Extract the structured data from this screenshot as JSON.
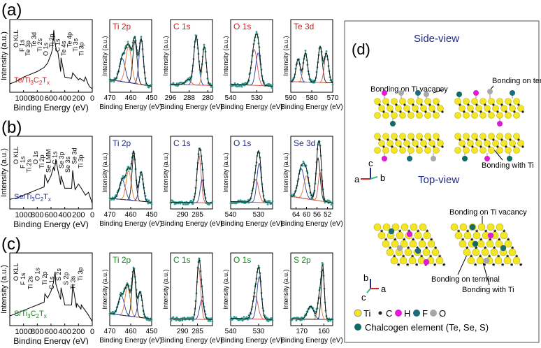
{
  "chart_data": {
    "type": "line",
    "colors": {
      "data": "#2a9d8f",
      "fit": "#111111",
      "bg_line": "#d9534f",
      "alt1": "#2b3a9e",
      "alt2": "#e07b39",
      "te_label": "#d42020",
      "se_label": "#1f2a8a",
      "s_label": "#138a1c",
      "ti": "#f3e626",
      "c": "#222222",
      "h": "#e11ad5",
      "f": "#1b6b7a",
      "o": "#a8a8a8",
      "chalc": "#0f6b63"
    },
    "common": {
      "ylabel": "Intensity (a.u.)",
      "xlabel": "Binding Energy (eV)"
    },
    "rows": [
      {
        "panel": "(a)",
        "survey": {
          "label_main": "Te/Ti",
          "label_sub1": "3",
          "label_mid": "C",
          "label_sub2": "2",
          "label_end": "T",
          "label_sub3": "x",
          "xlim": [
            1200,
            0
          ],
          "ticks": [
            1000,
            800,
            600,
            400,
            200,
            0
          ],
          "x": [
            1200,
            1100,
            1000,
            900,
            800,
            700,
            650,
            600,
            580,
            560,
            540,
            520,
            500,
            460,
            455,
            400,
            300,
            285,
            200,
            180,
            120,
            100,
            60,
            40,
            0
          ],
          "y": [
            0.12,
            0.16,
            0.22,
            0.26,
            0.3,
            0.36,
            0.42,
            0.55,
            0.62,
            0.9,
            0.7,
            0.6,
            0.58,
            0.3,
            0.5,
            0.22,
            0.2,
            0.28,
            0.18,
            0.2,
            0.16,
            0.22,
            0.12,
            0.08,
            0.05
          ],
          "peaks": [
            "O KLL",
            "F 1s",
            "Te 3p",
            "Te 3d",
            "Ti 2s",
            "O 1s",
            "Ti 2p",
            "C 1s",
            "Te 4s",
            "Te 4p",
            "Ti 3s",
            "Ti 3p"
          ]
        },
        "hr": [
          {
            "title": "Ti 2p",
            "xlim": [
              470,
              450
            ],
            "ticks": [
              470,
              460,
              450
            ],
            "peaks": [
              {
                "c": 464,
                "h": 0.35,
                "w": 1.4,
                "k": "alt1"
              },
              {
                "c": 461,
                "h": 0.55,
                "w": 1.4,
                "k": "alt2"
              },
              {
                "c": 458,
                "h": 0.65,
                "w": 1.0,
                "k": "fit"
              },
              {
                "c": 455,
                "h": 0.7,
                "w": 1.0,
                "k": "alt1"
              }
            ],
            "bg": [
              0.15,
              0.05
            ]
          },
          {
            "title": "C 1s",
            "xlim": [
              296,
              278
            ],
            "ticks": [
              296,
              288,
              280
            ],
            "peaks": [
              {
                "c": 285,
                "h": 0.75,
                "w": 1.0,
                "k": "alt1"
              },
              {
                "c": 281.5,
                "h": 0.6,
                "w": 0.8,
                "k": "alt2"
              },
              {
                "c": 288.5,
                "h": 0.08,
                "w": 1.2,
                "k": "bg_line"
              }
            ],
            "bg": [
              0.08,
              0.06
            ]
          },
          {
            "title": "O 1s",
            "xlim": [
              540,
              524
            ],
            "ticks": [
              540,
              530
            ],
            "peaks": [
              {
                "c": 531,
                "h": 0.55,
                "w": 1.1,
                "k": "bg_line"
              },
              {
                "c": 529.5,
                "h": 0.5,
                "w": 0.9,
                "k": "alt1"
              }
            ],
            "bg": [
              0.08,
              0.05
            ]
          },
          {
            "title": "Te 3d",
            "xlim": [
              590,
              570
            ],
            "ticks": [
              590,
              580,
              570
            ],
            "peaks": [
              {
                "c": 586.5,
                "h": 0.35,
                "w": 1.0,
                "k": "alt1"
              },
              {
                "c": 583,
                "h": 0.45,
                "w": 1.0,
                "k": "alt2"
              },
              {
                "c": 576,
                "h": 0.55,
                "w": 1.0,
                "k": "fit"
              },
              {
                "c": 573,
                "h": 0.45,
                "w": 1.0,
                "k": "bg_line"
              }
            ],
            "bg": [
              0.12,
              0.1
            ]
          }
        ]
      },
      {
        "panel": "(b)",
        "survey": {
          "label_main": "Se/Ti",
          "label_sub1": "3",
          "label_mid": "C",
          "label_sub2": "2",
          "label_end": "T",
          "label_sub3": "x",
          "xlim": [
            1200,
            0
          ],
          "ticks": [
            1000,
            800,
            600,
            400,
            200,
            0
          ],
          "x": [
            1200,
            1100,
            1000,
            900,
            800,
            700,
            690,
            650,
            600,
            565,
            550,
            530,
            460,
            455,
            400,
            300,
            285,
            250,
            200,
            160,
            100,
            55,
            0
          ],
          "y": [
            0.14,
            0.16,
            0.2,
            0.24,
            0.28,
            0.32,
            0.5,
            0.38,
            0.48,
            0.6,
            0.55,
            0.72,
            0.35,
            0.48,
            0.3,
            0.3,
            0.56,
            0.28,
            0.36,
            0.3,
            0.2,
            0.24,
            0.08
          ],
          "peaks": [
            "O KLL",
            "F 1s",
            "Ti 2s",
            "O 1s",
            "Ti 2p",
            "Se LMM",
            "C 1s",
            "Se 3p",
            "Se 3s",
            "Se 3d",
            "Ti 3p"
          ]
        },
        "hr": [
          {
            "title": "Ti 2p",
            "xlim": [
              470,
              450
            ],
            "ticks": [
              470,
              460,
              450
            ],
            "peaks": [
              {
                "c": 464,
                "h": 0.3,
                "w": 1.4,
                "k": "alt1"
              },
              {
                "c": 461,
                "h": 0.45,
                "w": 1.2,
                "k": "alt2"
              },
              {
                "c": 458.5,
                "h": 0.7,
                "w": 0.9,
                "k": "fit"
              },
              {
                "c": 455,
                "h": 0.45,
                "w": 1.0,
                "k": "alt1"
              }
            ],
            "bg": [
              0.12,
              0.06
            ]
          },
          {
            "title": "C 1s",
            "xlim": [
              294,
              280
            ],
            "ticks": [
              290,
              285
            ],
            "peaks": [
              {
                "c": 284.5,
                "h": 0.72,
                "w": 0.7,
                "k": "bg_line"
              },
              {
                "c": 283.5,
                "h": 0.35,
                "w": 0.6,
                "k": "alt1"
              }
            ],
            "bg": [
              0.06,
              0.05
            ]
          },
          {
            "title": "O 1s",
            "xlim": [
              540,
              525
            ],
            "ticks": [
              540,
              530
            ],
            "peaks": [
              {
                "c": 531,
                "h": 0.35,
                "w": 1.0,
                "k": "bg_line"
              },
              {
                "c": 529.8,
                "h": 0.6,
                "w": 0.8,
                "k": "alt1"
              }
            ],
            "bg": [
              0.07,
              0.05
            ]
          },
          {
            "title": "Se 3d",
            "xlim": [
              66,
              50
            ],
            "ticks": [
              64,
              60,
              56,
              52
            ],
            "peaks": [
              {
                "c": 62,
                "h": 0.45,
                "w": 1.2,
                "k": "alt1"
              },
              {
                "c": 60,
                "h": 0.35,
                "w": 1.0,
                "k": "alt2"
              },
              {
                "c": 55.6,
                "h": 0.65,
                "w": 0.8,
                "k": "fit"
              },
              {
                "c": 54.8,
                "h": 0.45,
                "w": 0.7,
                "k": "bg_line"
              }
            ],
            "bg": [
              0.15,
              0.05
            ]
          }
        ]
      },
      {
        "panel": "(c)",
        "survey": {
          "label_main": "S/Ti",
          "label_sub1": "3",
          "label_mid": "C",
          "label_sub2": "2",
          "label_end": "T",
          "label_sub3": "x",
          "xlim": [
            1200,
            0
          ],
          "ticks": [
            1000,
            800,
            600,
            400,
            200,
            0
          ],
          "x": [
            1200,
            1100,
            1000,
            900,
            800,
            700,
            690,
            650,
            600,
            565,
            540,
            530,
            460,
            455,
            400,
            300,
            285,
            230,
            225,
            165,
            160,
            60,
            0
          ],
          "y": [
            0.14,
            0.18,
            0.22,
            0.26,
            0.3,
            0.34,
            0.46,
            0.4,
            0.5,
            0.62,
            0.78,
            0.6,
            0.38,
            0.55,
            0.3,
            0.3,
            0.6,
            0.26,
            0.32,
            0.24,
            0.3,
            0.16,
            0.06
          ],
          "peaks": [
            "O KLL",
            "F 1s",
            "Ti 2s",
            "O 1s",
            "Ti 2p",
            "C 1s",
            "S 2s",
            "S 2p",
            "Ti 3s",
            "Ti 3p"
          ]
        },
        "hr": [
          {
            "title": "Ti 2p",
            "xlim": [
              470,
              450
            ],
            "ticks": [
              470,
              460,
              450
            ],
            "peaks": [
              {
                "c": 464.5,
                "h": 0.3,
                "w": 1.4,
                "k": "alt1"
              },
              {
                "c": 461.5,
                "h": 0.45,
                "w": 1.2,
                "k": "alt2"
              },
              {
                "c": 458.5,
                "h": 0.72,
                "w": 0.9,
                "k": "fit"
              },
              {
                "c": 455.5,
                "h": 0.4,
                "w": 1.0,
                "k": "alt1"
              }
            ],
            "bg": [
              0.14,
              0.06
            ]
          },
          {
            "title": "C 1s",
            "xlim": [
              294,
              280
            ],
            "ticks": [
              290,
              285
            ],
            "peaks": [
              {
                "c": 284.6,
                "h": 0.8,
                "w": 0.65,
                "k": "bg_line"
              },
              {
                "c": 283.6,
                "h": 0.3,
                "w": 0.7,
                "k": "alt1"
              }
            ],
            "bg": [
              0.06,
              0.05
            ]
          },
          {
            "title": "O 1s",
            "xlim": [
              540,
              525
            ],
            "ticks": [
              540,
              530
            ],
            "peaks": [
              {
                "c": 531.2,
                "h": 0.35,
                "w": 1.0,
                "k": "bg_line"
              },
              {
                "c": 529.8,
                "h": 0.65,
                "w": 0.8,
                "k": "alt1"
              }
            ],
            "bg": [
              0.07,
              0.05
            ]
          },
          {
            "title": "S 2p",
            "xlim": [
              175,
              156
            ],
            "ticks": [
              170,
              160
            ],
            "peaks": [
              {
                "c": 166,
                "h": 0.2,
                "w": 1.4,
                "k": "alt1"
              },
              {
                "c": 162,
                "h": 0.35,
                "w": 0.8,
                "k": "alt2"
              },
              {
                "c": 160.5,
                "h": 0.78,
                "w": 0.7,
                "k": "fit"
              }
            ],
            "bg": [
              0.06,
              0.05
            ]
          }
        ]
      }
    ],
    "panel_d": {
      "label": "(d)",
      "side_view": "Side-view",
      "top_view": "Top-view",
      "ann_vacancy": "Bonding on Ti vacancy",
      "ann_terminal": "Bonding on terminal",
      "ann_withti": "Bonding with Ti",
      "axis_a": "a",
      "axis_b": "b",
      "axis_c": "c",
      "legend": [
        {
          "key": "ti",
          "label": "Ti"
        },
        {
          "key": "c",
          "label": "C"
        },
        {
          "key": "h",
          "label": "H"
        },
        {
          "key": "f",
          "label": "F"
        },
        {
          "key": "o",
          "label": "O"
        }
      ],
      "legend_chalc": "Chalcogen element (Te, Se, S)"
    }
  }
}
